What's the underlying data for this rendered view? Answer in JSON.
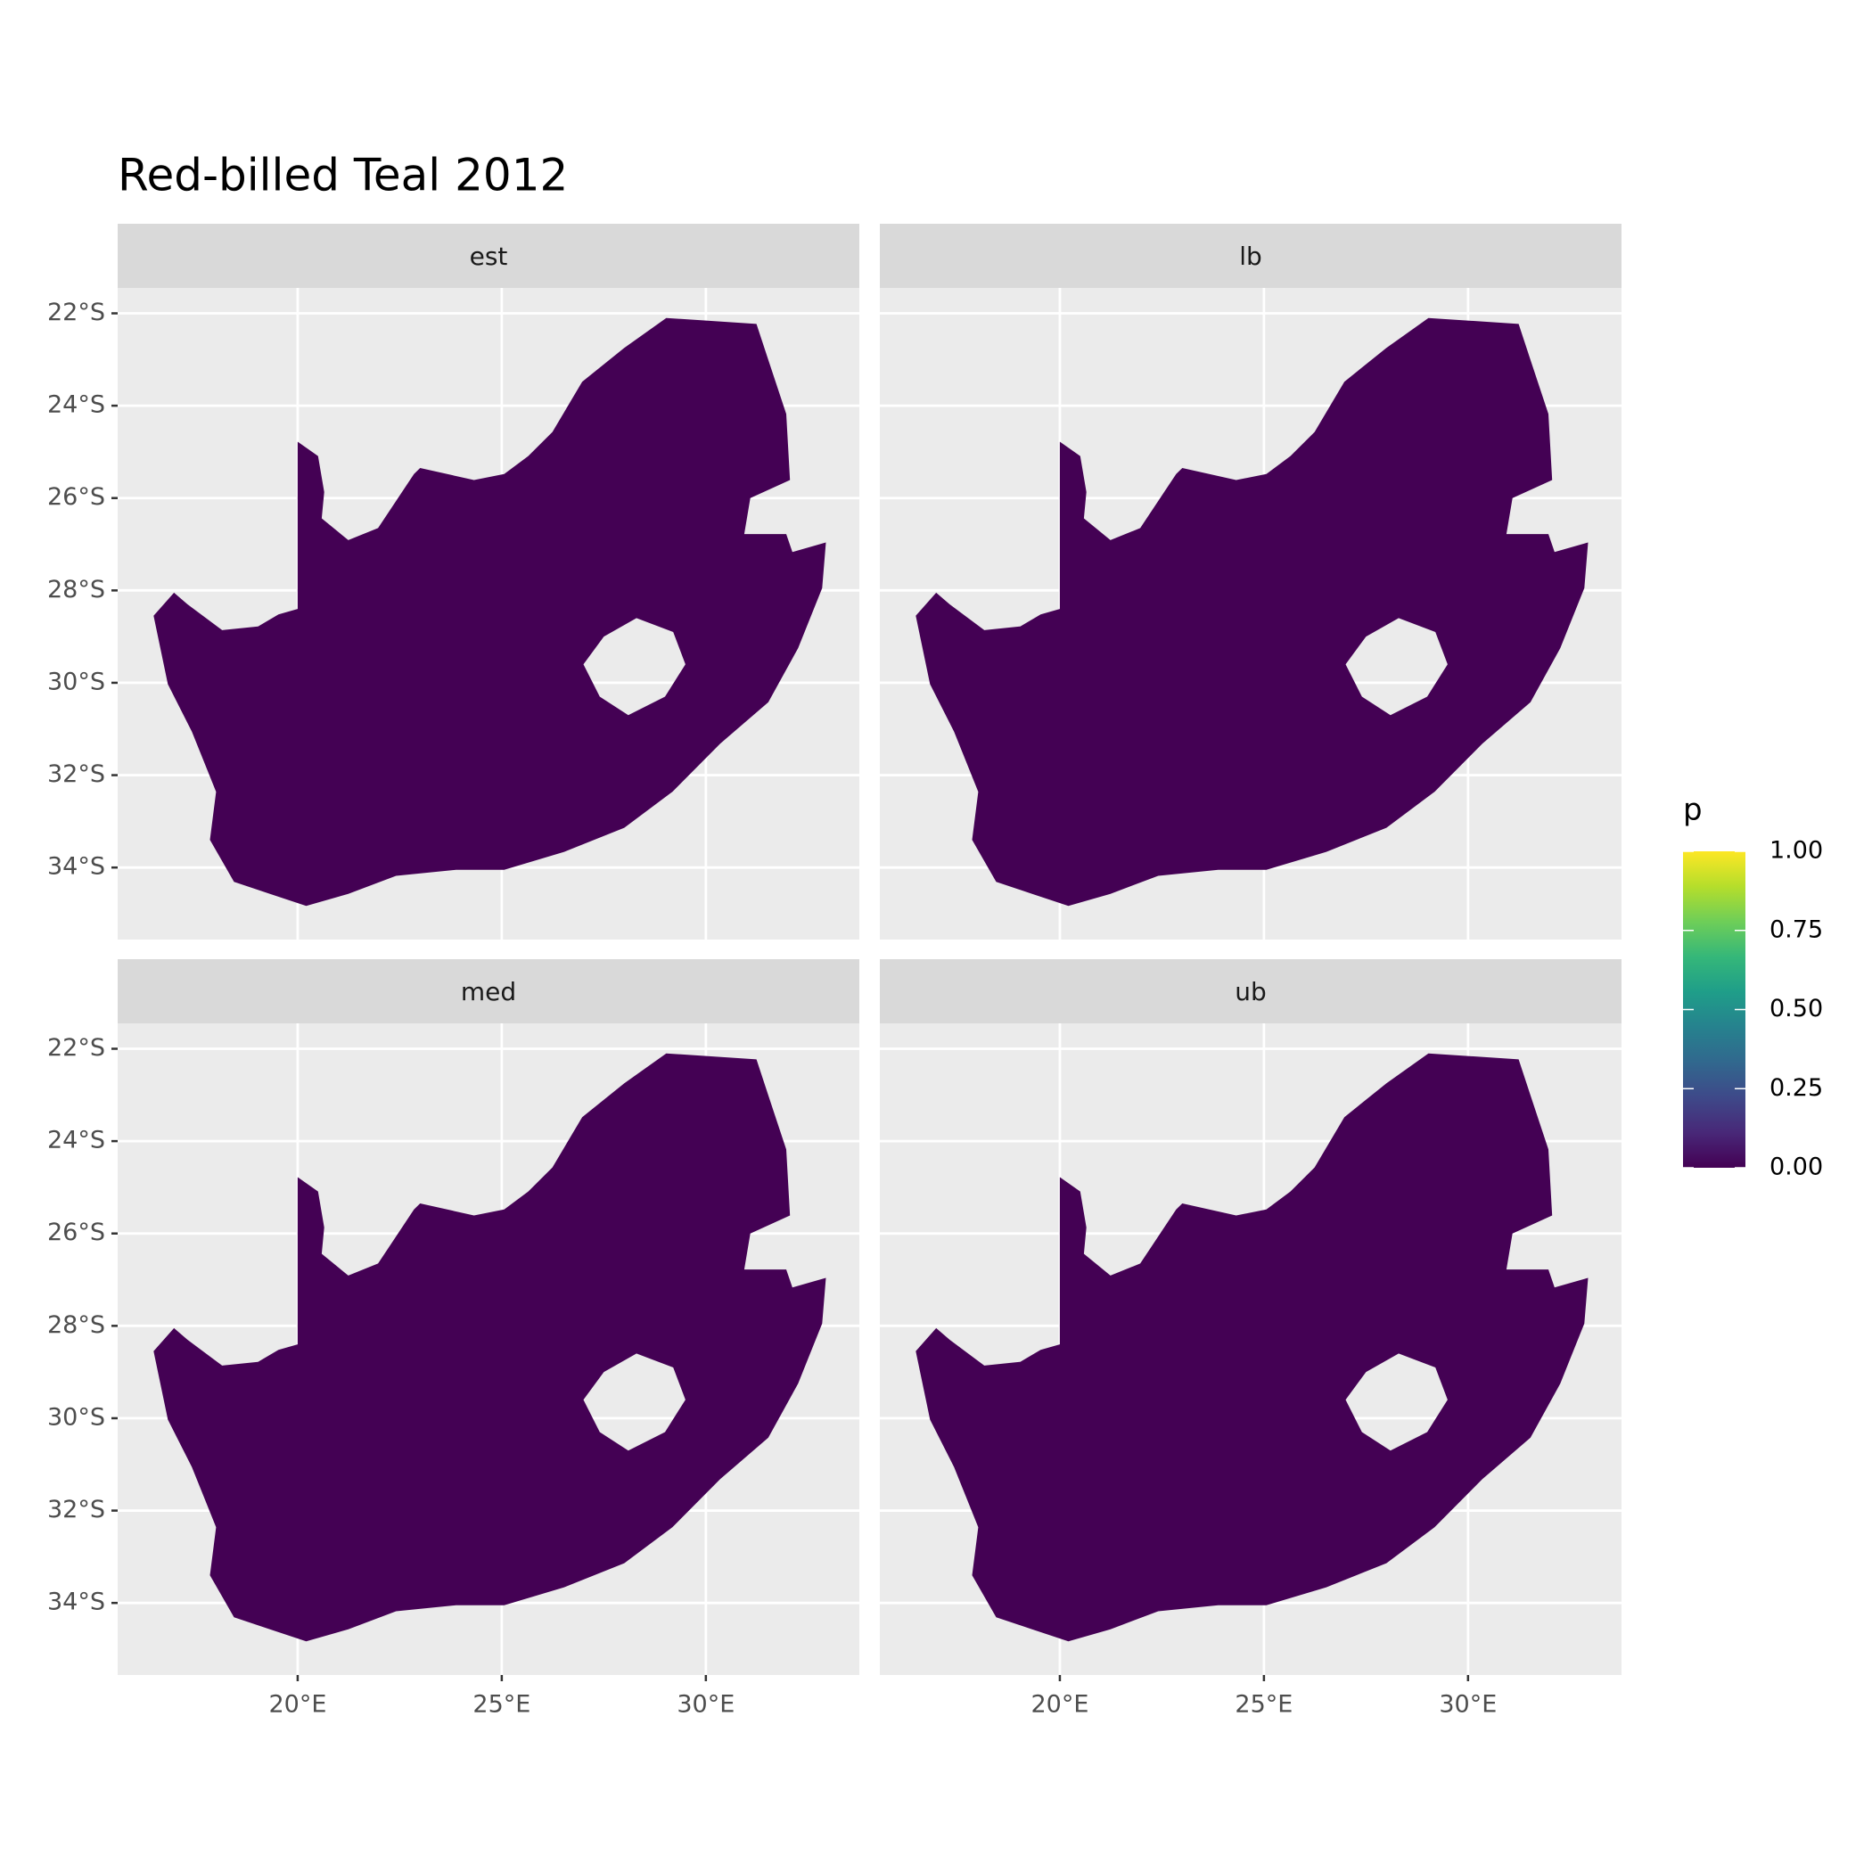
{
  "chart_data": {
    "type": "map",
    "title": "Red-billed Teal 2012",
    "facets": [
      "est",
      "lb",
      "med",
      "ub"
    ],
    "fill": "#440154",
    "xlim": [
      15.59,
      33.76
    ],
    "ylim": [
      -35.56,
      -21.45
    ],
    "xticks": [
      {
        "value": 20,
        "label": "20°E"
      },
      {
        "value": 25,
        "label": "25°E"
      },
      {
        "value": 30,
        "label": "30°E"
      }
    ],
    "yticks": [
      {
        "value": -22,
        "label": "22°S"
      },
      {
        "value": -24,
        "label": "24°S"
      },
      {
        "value": -26,
        "label": "26°S"
      },
      {
        "value": -28,
        "label": "28°S"
      },
      {
        "value": -30,
        "label": "30°S"
      },
      {
        "value": -32,
        "label": "32°S"
      },
      {
        "value": -34,
        "label": "34°S"
      }
    ],
    "grid": true,
    "legend": {
      "title": "p",
      "lim": [
        0,
        1
      ],
      "colors": [
        "#440154",
        "#482878",
        "#3e4989",
        "#31688e",
        "#26828e",
        "#1f9e89",
        "#35b779",
        "#6ece58",
        "#b5de2b",
        "#fde725"
      ],
      "ticks": [
        {
          "value": 0,
          "label": "0.00"
        },
        {
          "value": 0.25,
          "label": "0.25"
        },
        {
          "value": 0.5,
          "label": "0.50"
        },
        {
          "value": 0.75,
          "label": "0.75"
        },
        {
          "value": 1,
          "label": "1.00"
        }
      ]
    }
  }
}
